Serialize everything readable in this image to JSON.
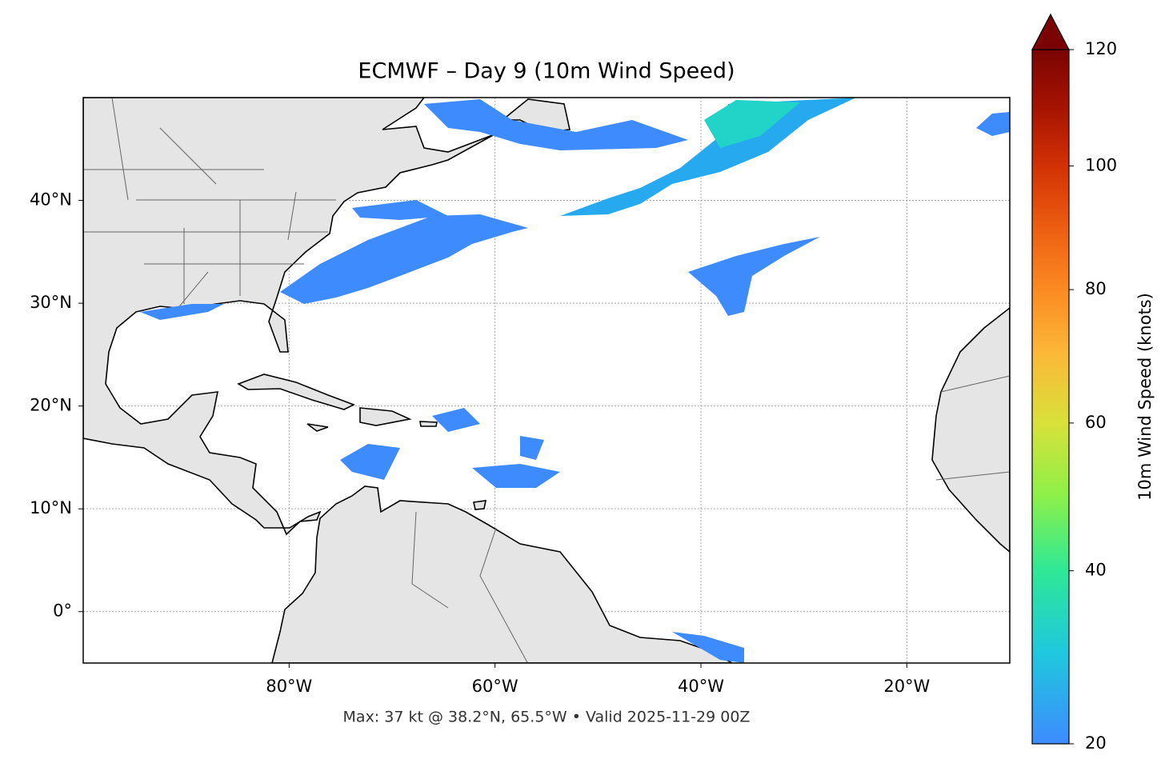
{
  "title": "ECMWF – Day 9 (10m Wind Speed)",
  "footer": "Max: 37 kt @ 38.2°N, 65.5°W • Valid 2025-11-29 00Z",
  "map": {
    "xlim": [
      -100,
      -10
    ],
    "ylim": [
      -5,
      50
    ],
    "xticks": [
      {
        "value": -80,
        "label": "80°W"
      },
      {
        "value": -60,
        "label": "60°W"
      },
      {
        "value": -40,
        "label": "40°W"
      },
      {
        "value": -20,
        "label": "20°W"
      }
    ],
    "yticks": [
      {
        "value": 0,
        "label": "0°"
      },
      {
        "value": 10,
        "label": "10°N"
      },
      {
        "value": 20,
        "label": "20°N"
      },
      {
        "value": 30,
        "label": "30°N"
      },
      {
        "value": 40,
        "label": "40°N"
      }
    ],
    "grid": true,
    "land_color": "#e5e5e5"
  },
  "colorbar": {
    "label": "10m Wind Speed (knots)",
    "lim": [
      20,
      120
    ],
    "ticks": [
      20,
      40,
      60,
      80,
      100,
      120
    ],
    "norm": "power",
    "gamma": 0.7,
    "extend": "max",
    "colormap": [
      "#3e8bfe",
      "#1fc8de",
      "#2ee896",
      "#8ef048",
      "#d8e13a",
      "#fbb938",
      "#fb8a22",
      "#ec5d11",
      "#d23105",
      "#a51301",
      "#7a0403"
    ]
  }
}
